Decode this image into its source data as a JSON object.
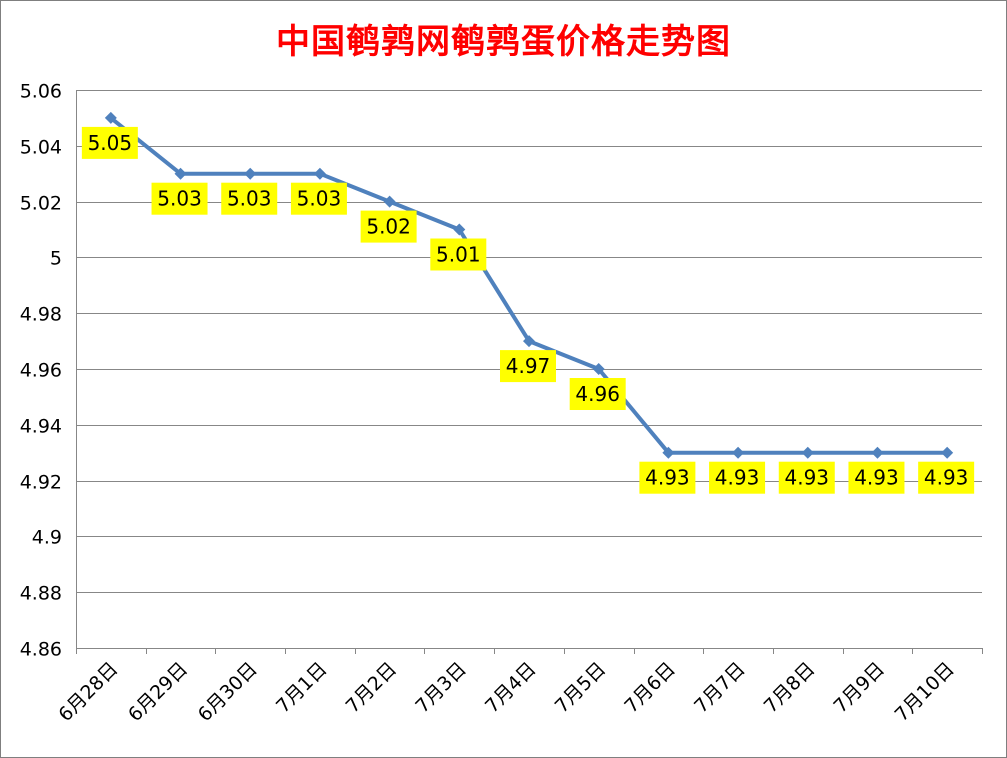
{
  "chart_data": {
    "type": "line",
    "title": "中国鹌鹑网鹌鹑蛋价格走势图",
    "xlabel": "",
    "ylabel": "",
    "categories": [
      "6月28日",
      "6月29日",
      "6月30日",
      "7月1日",
      "7月2日",
      "7月3日",
      "7月4日",
      "7月5日",
      "7月6日",
      "7月7日",
      "7月8日",
      "7月9日",
      "7月10日"
    ],
    "series": [
      {
        "values": [
          5.05,
          5.03,
          5.03,
          5.03,
          5.02,
          5.01,
          4.97,
          4.96,
          4.93,
          4.93,
          4.93,
          4.93,
          4.93
        ],
        "labels": [
          "5.05",
          "5.03",
          "5.03",
          "5.03",
          "5.02",
          "5.01",
          "4.97",
          "4.96",
          "4.93",
          "4.93",
          "4.93",
          "4.93",
          "4.93"
        ]
      }
    ],
    "ylim": [
      4.86,
      5.06
    ],
    "yticks": [
      "5.06",
      "5.04",
      "5.02",
      "5",
      "4.98",
      "4.96",
      "4.94",
      "4.92",
      "4.9",
      "4.88",
      "4.86"
    ],
    "grid": true,
    "legend": "none",
    "colors": {
      "line": "#4f81bd",
      "marker": "#4f81bd",
      "label_bg": "#ffff00",
      "grid": "#878787",
      "title": "#ff0000"
    }
  }
}
